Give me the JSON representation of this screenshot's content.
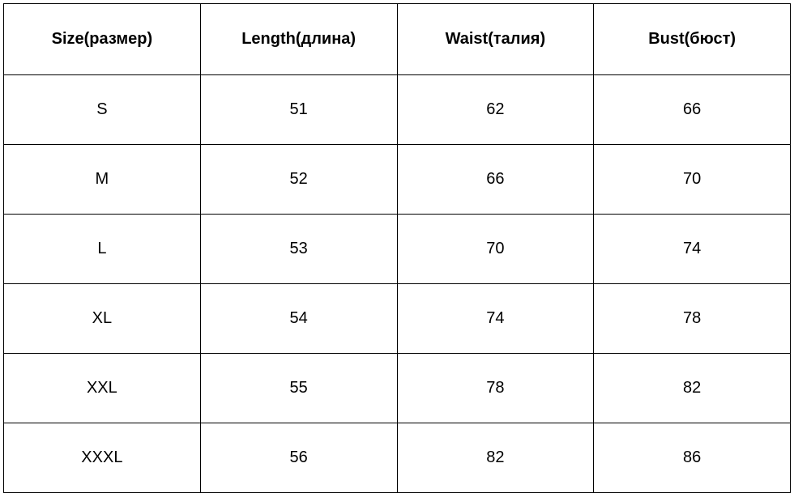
{
  "table": {
    "type": "table",
    "border_color": "#000000",
    "background_color": "#ffffff",
    "text_color": "#000000",
    "header_fontsize": 20,
    "cell_fontsize": 20,
    "columns": [
      {
        "label": "Size(размер)"
      },
      {
        "label": "Length(длина)"
      },
      {
        "label": "Waist(талия)"
      },
      {
        "label": "Bust(бюст)"
      }
    ],
    "rows": [
      [
        "S",
        "51",
        "62",
        "66"
      ],
      [
        "M",
        "52",
        "66",
        "70"
      ],
      [
        "L",
        "53",
        "70",
        "74"
      ],
      [
        "XL",
        "54",
        "74",
        "78"
      ],
      [
        "XXL",
        "55",
        "78",
        "82"
      ],
      [
        "XXXL",
        "56",
        "82",
        "86"
      ]
    ]
  }
}
